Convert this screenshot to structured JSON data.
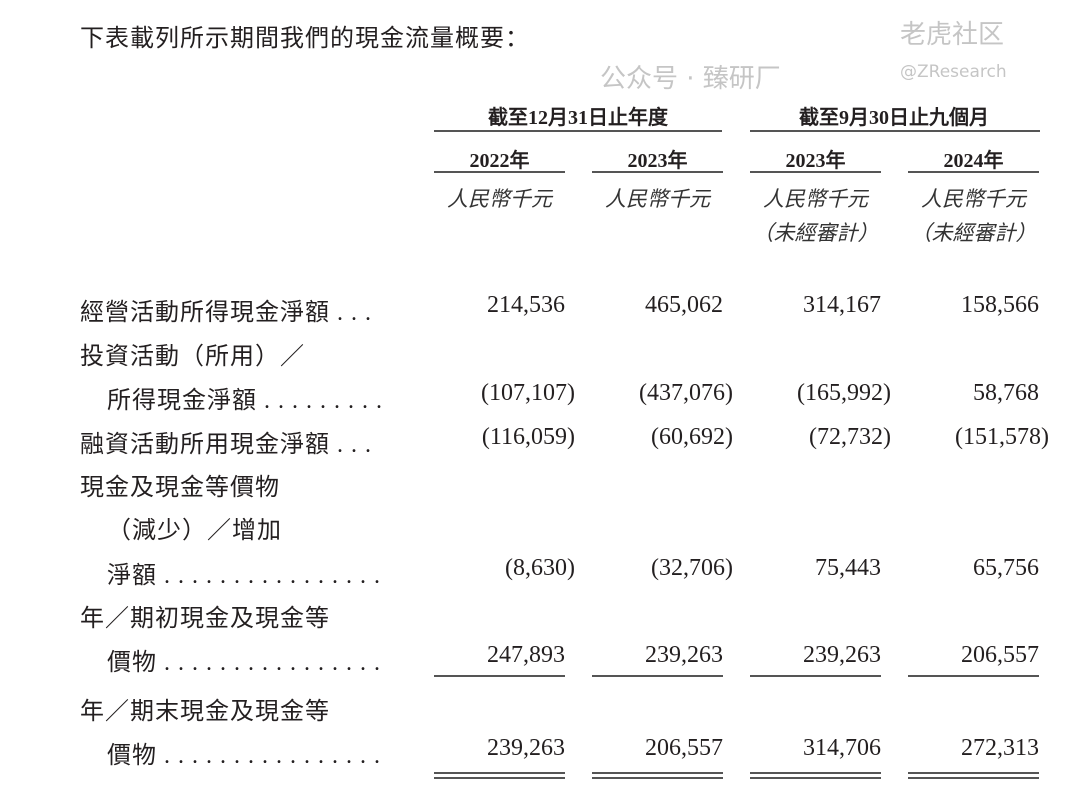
{
  "intro": "下表載列所示期間我們的現金流量概要：",
  "header": {
    "group_year": "截至12月31日止年度",
    "group_nine_months": "截至9月30日止九個月",
    "columns": [
      {
        "year": "2022年",
        "unit": "人民幣千元",
        "note": ""
      },
      {
        "year": "2023年",
        "unit": "人民幣千元",
        "note": ""
      },
      {
        "year": "2023年",
        "unit": "人民幣千元",
        "note": "（未經審計）"
      },
      {
        "year": "2024年",
        "unit": "人民幣千元",
        "note": "（未經審計）"
      }
    ]
  },
  "rows": [
    {
      "lines": [
        "經營活動所得現金淨額 . . ."
      ],
      "values": [
        "214,536",
        "465,062",
        "314,167",
        "158,566"
      ]
    },
    {
      "lines": [
        "投資活動（所用）／",
        "所得現金淨額 . . . . . . . . ."
      ],
      "values": [
        "(107,107)",
        "(437,076)",
        "(165,992)",
        "58,768"
      ]
    },
    {
      "lines": [
        "融資活動所用現金淨額 . . ."
      ],
      "values": [
        "(116,059)",
        "(60,692)",
        "(72,732)",
        "(151,578)"
      ]
    },
    {
      "lines": [
        "現金及現金等價物",
        "（減少）／增加",
        "淨額 . . . . . . . . . . . . . . . ."
      ],
      "values": [
        "(8,630)",
        "(32,706)",
        "75,443",
        "65,756"
      ]
    },
    {
      "lines": [
        "年／期初現金及現金等",
        "價物 . . . . . . . . . . . . . . . ."
      ],
      "values": [
        "247,893",
        "239,263",
        "239,263",
        "206,557"
      ]
    },
    {
      "lines": [
        "年／期末現金及現金等",
        "價物 . . . . . . . . . . . . . . . ."
      ],
      "values": [
        "239,263",
        "206,557",
        "314,706",
        "272,313"
      ]
    }
  ],
  "watermark": {
    "account": "公众号 · 臻研厂",
    "community": "老虎社区",
    "handle": "@ZResearch"
  }
}
